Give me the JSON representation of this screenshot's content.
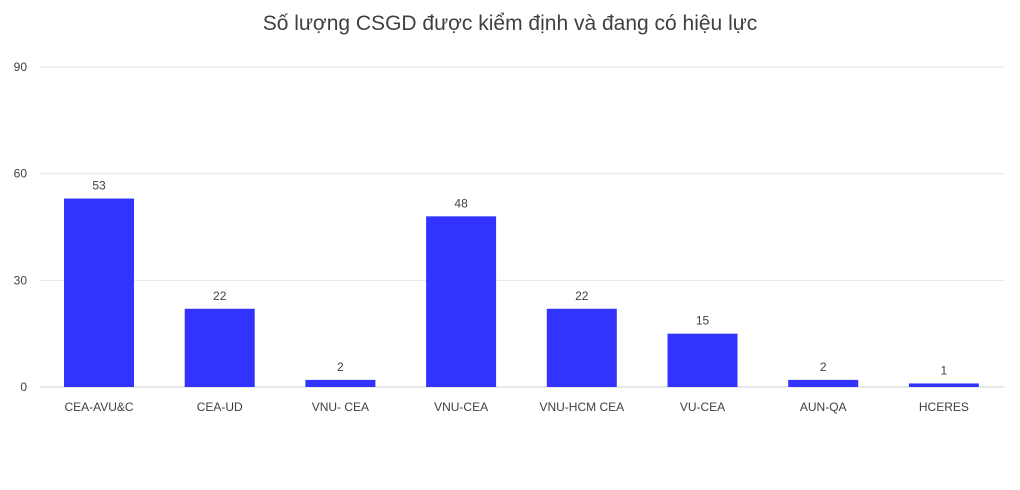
{
  "chart_data": {
    "type": "bar",
    "title": "Số lượng CSGD được kiểm định và đang có hiệu lực",
    "categories": [
      "CEA-AVU&C",
      "CEA-UD",
      "VNU- CEA",
      "VNU-CEA",
      "VNU-HCM CEA",
      "VU-CEA",
      "AUN-QA",
      "HCERES"
    ],
    "values": [
      53,
      22,
      2,
      48,
      22,
      15,
      2,
      1
    ],
    "yticks": [
      0,
      30,
      60,
      90
    ],
    "ylim": [
      0,
      90
    ],
    "xlabel": "",
    "ylabel": "",
    "grid": true,
    "legend": "none",
    "colors": {
      "bar": "#3333ff",
      "grid": "#e6e6e6",
      "text": "#404040"
    }
  }
}
